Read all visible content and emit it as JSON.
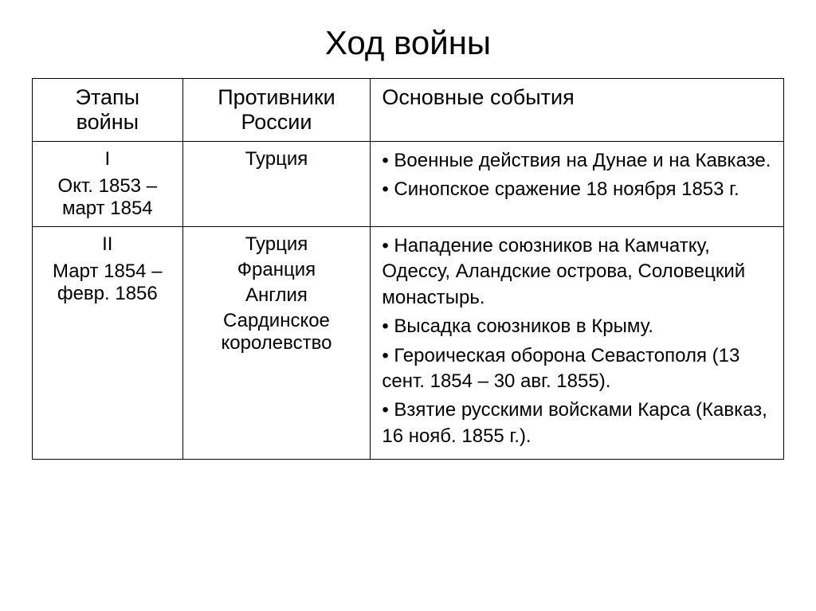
{
  "title": "Ход войны",
  "columns": {
    "stage": "Этапы войны",
    "opponents": "Противники России",
    "events": "Основные события"
  },
  "rows": [
    {
      "stage_num": "I",
      "stage_period": "Окт. 1853  – март 1854",
      "opponents": [
        "Турция"
      ],
      "events": [
        "• Военные действия на Дунае и на Кавказе.",
        "• Синопское сражение 18 ноября 1853 г."
      ]
    },
    {
      "stage_num": "II",
      "stage_period": "Март 1854 – февр. 1856",
      "opponents": [
        "Турция",
        "Франция",
        "Англия",
        "Сардинское королевство"
      ],
      "events": [
        "• Нападение союзников на Камчатку, Одессу, Аландские острова, Соловецкий монастырь.",
        "• Высадка союзников в Крыму.",
        "• Героическая оборона Севастополя (13 сент. 1854 – 30 авг. 1855).",
        "• Взятие русскими войсками Карса (Кавказ, 16 нояб. 1855 г.)."
      ]
    }
  ],
  "styling": {
    "background_color": "#ffffff",
    "text_color": "#000000",
    "border_color": "#000000",
    "title_fontsize": 42,
    "header_fontsize": 27,
    "cell_fontsize": 24,
    "column_widths": [
      "20%",
      "25%",
      "55%"
    ],
    "font_family": "Arial"
  }
}
